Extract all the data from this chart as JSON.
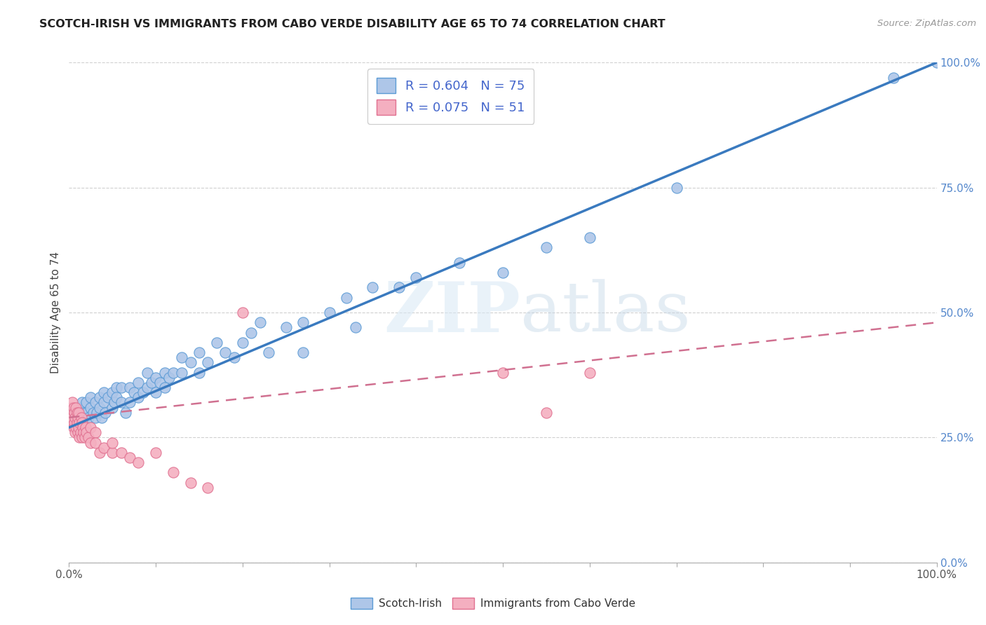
{
  "title": "SCOTCH-IRISH VS IMMIGRANTS FROM CABO VERDE DISABILITY AGE 65 TO 74 CORRELATION CHART",
  "source": "Source: ZipAtlas.com",
  "ylabel": "Disability Age 65 to 74",
  "x_tick_vals": [
    0.0,
    0.1,
    0.2,
    0.3,
    0.4,
    0.5,
    0.6,
    0.7,
    0.8,
    0.9,
    1.0
  ],
  "x_edge_labels": [
    "0.0%",
    "100.0%"
  ],
  "y_tick_vals": [
    0.0,
    0.25,
    0.5,
    0.75,
    1.0
  ],
  "y_tick_labels": [
    "0.0%",
    "25.0%",
    "50.0%",
    "75.0%",
    "100.0%"
  ],
  "scotch_irish_color": "#aec6e8",
  "scotch_irish_edge": "#5b9bd5",
  "cabo_verde_color": "#f4afc0",
  "cabo_verde_edge": "#e07090",
  "trend_scotch_color": "#3a7abf",
  "trend_cabo_color": "#d07090",
  "R_scotch": 0.604,
  "N_scotch": 75,
  "R_cabo": 0.075,
  "N_cabo": 51,
  "legend_text_color": "#4466cc",
  "watermark_zip": "ZIP",
  "watermark_atlas": "atlas",
  "scotch_label": "Scotch-Irish",
  "cabo_label": "Immigrants from Cabo Verde",
  "background_color": "#ffffff",
  "grid_color": "#d0d0d0",
  "si_x": [
    0.005,
    0.01,
    0.012,
    0.015,
    0.015,
    0.018,
    0.02,
    0.02,
    0.022,
    0.025,
    0.025,
    0.028,
    0.03,
    0.03,
    0.032,
    0.035,
    0.035,
    0.038,
    0.04,
    0.04,
    0.042,
    0.045,
    0.05,
    0.05,
    0.052,
    0.055,
    0.055,
    0.06,
    0.06,
    0.065,
    0.07,
    0.07,
    0.075,
    0.08,
    0.08,
    0.085,
    0.09,
    0.09,
    0.095,
    0.1,
    0.1,
    0.105,
    0.11,
    0.11,
    0.115,
    0.12,
    0.13,
    0.13,
    0.14,
    0.15,
    0.15,
    0.16,
    0.17,
    0.18,
    0.19,
    0.2,
    0.21,
    0.22,
    0.23,
    0.25,
    0.27,
    0.27,
    0.3,
    0.32,
    0.33,
    0.35,
    0.38,
    0.4,
    0.45,
    0.5,
    0.55,
    0.6,
    0.7,
    0.95,
    1.0
  ],
  "si_y": [
    0.295,
    0.3,
    0.31,
    0.28,
    0.32,
    0.29,
    0.3,
    0.32,
    0.29,
    0.31,
    0.33,
    0.3,
    0.29,
    0.32,
    0.3,
    0.31,
    0.33,
    0.29,
    0.32,
    0.34,
    0.3,
    0.33,
    0.31,
    0.34,
    0.32,
    0.35,
    0.33,
    0.32,
    0.35,
    0.3,
    0.32,
    0.35,
    0.34,
    0.33,
    0.36,
    0.34,
    0.35,
    0.38,
    0.36,
    0.34,
    0.37,
    0.36,
    0.35,
    0.38,
    0.37,
    0.38,
    0.38,
    0.41,
    0.4,
    0.38,
    0.42,
    0.4,
    0.44,
    0.42,
    0.41,
    0.44,
    0.46,
    0.48,
    0.42,
    0.47,
    0.42,
    0.48,
    0.5,
    0.53,
    0.47,
    0.55,
    0.55,
    0.57,
    0.6,
    0.58,
    0.63,
    0.65,
    0.75,
    0.97,
    1.0
  ],
  "cv_x": [
    0.001,
    0.002,
    0.003,
    0.003,
    0.004,
    0.004,
    0.005,
    0.005,
    0.006,
    0.006,
    0.007,
    0.007,
    0.008,
    0.008,
    0.009,
    0.009,
    0.01,
    0.01,
    0.011,
    0.011,
    0.012,
    0.012,
    0.013,
    0.014,
    0.015,
    0.015,
    0.016,
    0.017,
    0.018,
    0.019,
    0.02,
    0.022,
    0.025,
    0.025,
    0.03,
    0.03,
    0.035,
    0.04,
    0.05,
    0.05,
    0.06,
    0.07,
    0.08,
    0.1,
    0.12,
    0.14,
    0.16,
    0.2,
    0.5,
    0.55,
    0.6
  ],
  "cv_y": [
    0.295,
    0.31,
    0.28,
    0.3,
    0.29,
    0.32,
    0.27,
    0.31,
    0.28,
    0.3,
    0.26,
    0.29,
    0.27,
    0.31,
    0.28,
    0.3,
    0.26,
    0.29,
    0.27,
    0.3,
    0.25,
    0.28,
    0.26,
    0.29,
    0.25,
    0.28,
    0.27,
    0.26,
    0.25,
    0.27,
    0.26,
    0.25,
    0.27,
    0.24,
    0.26,
    0.24,
    0.22,
    0.23,
    0.22,
    0.24,
    0.22,
    0.21,
    0.2,
    0.22,
    0.18,
    0.16,
    0.15,
    0.5,
    0.38,
    0.3,
    0.38
  ],
  "si_trend_x0": 0.0,
  "si_trend_x1": 1.0,
  "si_trend_y0": 0.27,
  "si_trend_y1": 1.0,
  "cv_trend_x0": 0.0,
  "cv_trend_x1": 1.0,
  "cv_trend_y0": 0.29,
  "cv_trend_y1": 0.48
}
